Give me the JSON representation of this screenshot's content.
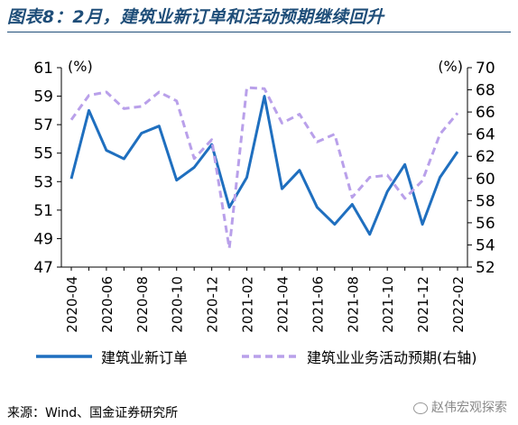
{
  "title": "图表8：2月，建筑业新订单和活动预期继续回升",
  "source": "来源：Wind、国金证券研究所",
  "watermark": "赵伟宏观探索",
  "chart_data": {
    "type": "line",
    "x": [
      "2020-04",
      "2020-05",
      "2020-06",
      "2020-07",
      "2020-08",
      "2020-09",
      "2020-10",
      "2020-11",
      "2020-12",
      "2021-01",
      "2021-02",
      "2021-03",
      "2021-04",
      "2021-05",
      "2021-06",
      "2021-07",
      "2021-08",
      "2021-09",
      "2021-10",
      "2021-11",
      "2021-12",
      "2022-01",
      "2022-02"
    ],
    "tick_labels": [
      "2020-04",
      "2020-06",
      "2020-08",
      "2020-10",
      "2020-12",
      "2021-02",
      "2021-04",
      "2021-06",
      "2021-08",
      "2021-10",
      "2021-12",
      "2022-02"
    ],
    "y_left": {
      "unit": "(%)",
      "min": 47,
      "max": 61,
      "ticks": [
        47,
        49,
        51,
        53,
        55,
        57,
        59,
        61
      ]
    },
    "y_right": {
      "unit": "(%)",
      "min": 52,
      "max": 70,
      "ticks": [
        52,
        54,
        56,
        58,
        60,
        62,
        64,
        66,
        68,
        70
      ]
    },
    "grid": false,
    "legend_position": "bottom",
    "series": [
      {
        "name": "建筑业新订单",
        "axis": "left",
        "style": "solid",
        "color": "#1f6fbf",
        "values": [
          53.2,
          58.0,
          55.2,
          54.6,
          56.4,
          56.9,
          53.1,
          54.0,
          55.6,
          51.2,
          53.3,
          59.0,
          52.5,
          53.8,
          51.2,
          50.0,
          51.4,
          49.3,
          52.3,
          54.2,
          50.0,
          53.3,
          55.1
        ]
      },
      {
        "name": "建筑业业务活动预期(右轴)",
        "axis": "right",
        "style": "dashed",
        "color": "#b9a0ea",
        "values": [
          65.3,
          67.5,
          67.8,
          66.3,
          66.5,
          67.8,
          67.0,
          61.8,
          63.5,
          53.7,
          68.2,
          68.1,
          65.0,
          65.8,
          63.3,
          64.0,
          58.3,
          60.1,
          60.3,
          58.2,
          59.8,
          64.0,
          65.9
        ]
      }
    ]
  }
}
